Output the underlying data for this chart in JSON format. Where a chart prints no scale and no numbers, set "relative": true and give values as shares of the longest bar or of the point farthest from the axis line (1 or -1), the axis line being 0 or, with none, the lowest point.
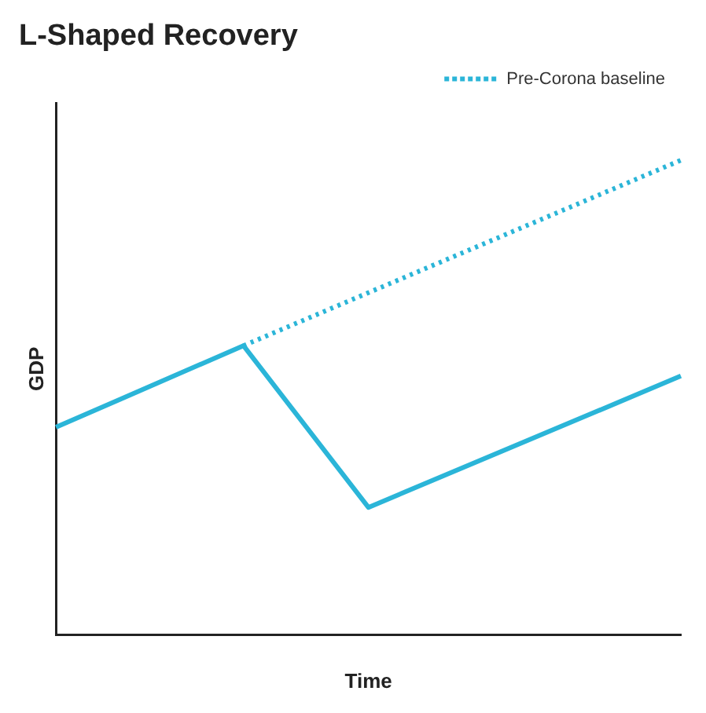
{
  "chart_data": {
    "type": "line",
    "title": "L-Shaped Recovery",
    "xlabel": "Time",
    "ylabel": "GDP",
    "relative": true,
    "categories": [
      null,
      null,
      null,
      null,
      null,
      null,
      null,
      null,
      null,
      null,
      null
    ],
    "grid": false,
    "legend": "top right",
    "marker": "none",
    "series": [
      {
        "color": "#2bb5d8",
        "line_style": "solid",
        "values": [
          0.437,
          null,
          null,
          0.609,
          null,
          0.268,
          null,
          null,
          null,
          null,
          0.545
        ]
      },
      {
        "name": "Pre-Corona baseline",
        "color": "#2bb5d8",
        "line_style": "dotted",
        "values": [
          null,
          null,
          null,
          0.609,
          null,
          null,
          null,
          null,
          null,
          null,
          1.0
        ]
      }
    ]
  }
}
